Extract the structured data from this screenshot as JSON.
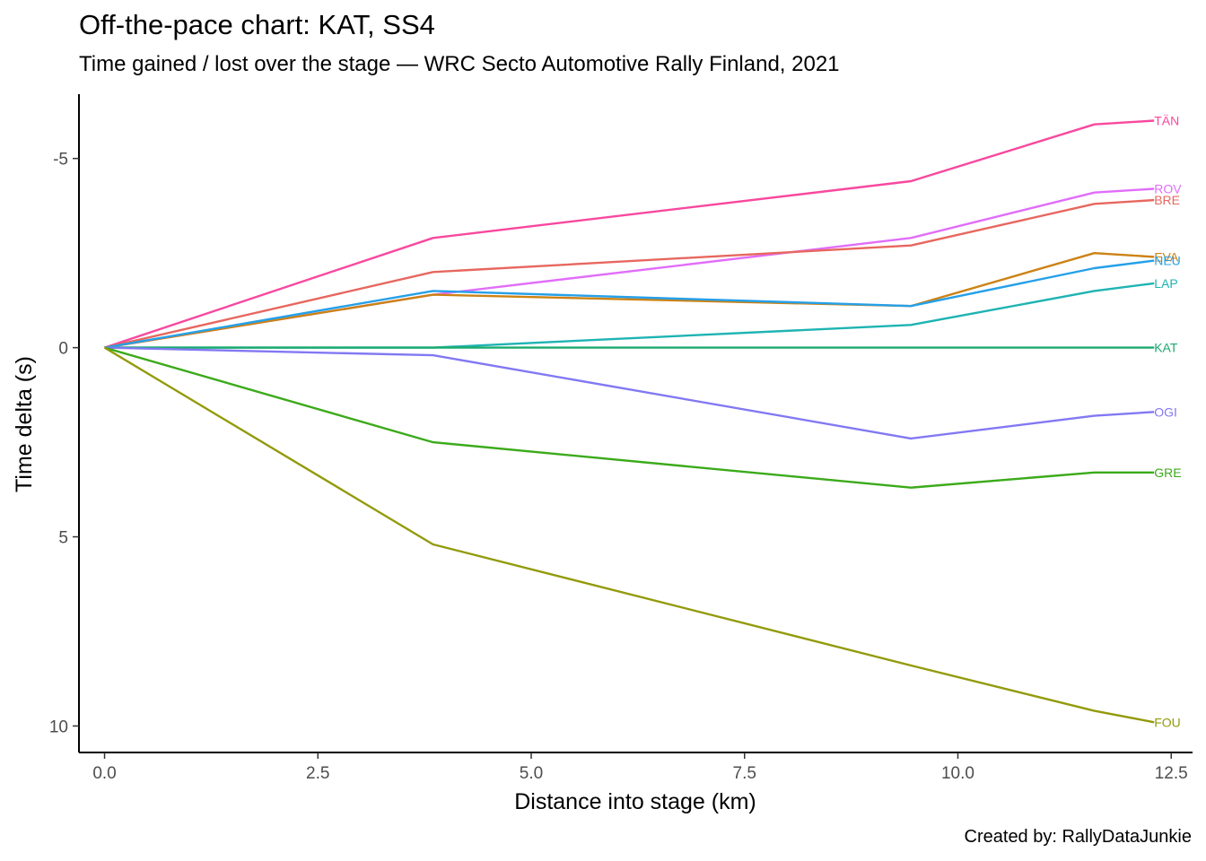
{
  "chart_data": {
    "type": "line",
    "title": "Off-the-pace chart: KAT, SS4",
    "subtitle": "Time gained / lost over the stage — WRC Secto Automotive Rally Finland, 2021",
    "caption": "Created by: RallyDataJunkie",
    "xlabel": "Distance into stage (km)",
    "ylabel": "Time delta (s)",
    "xlim": [
      -0.3,
      12.75
    ],
    "ylim": [
      -6.7,
      10.7
    ],
    "y_reversed": true,
    "grid": false,
    "legend": "none (direct line-end labels)",
    "x_ticks": [
      0,
      2.5,
      5,
      7.5,
      10,
      12.5
    ],
    "x_tick_labels": [
      "0.0",
      "2.5",
      "5.0",
      "7.5",
      "10.0",
      "12.5"
    ],
    "y_ticks": [
      -5,
      0,
      5,
      10
    ],
    "y_tick_labels": [
      "-5",
      "0",
      "5",
      "10"
    ],
    "x": [
      0,
      3.85,
      9.45,
      11.6,
      12.3
    ],
    "series": [
      {
        "name": "TÄN",
        "color": "#F8489E",
        "values": [
          0,
          -2.9,
          -4.4,
          -5.9,
          -6.0
        ]
      },
      {
        "name": "ROV",
        "color": "#E16DFA",
        "values": [
          0,
          -1.4,
          -2.9,
          -4.1,
          -4.2
        ]
      },
      {
        "name": "BRE",
        "color": "#E7675F",
        "values": [
          0,
          -2.0,
          -2.7,
          -3.8,
          -3.9
        ]
      },
      {
        "name": "EVA",
        "color": "#CC8214",
        "values": [
          0,
          -1.4,
          -1.1,
          -2.5,
          -2.4
        ]
      },
      {
        "name": "NEU",
        "color": "#25A0E8",
        "values": [
          0,
          -1.5,
          -1.1,
          -2.1,
          -2.3
        ]
      },
      {
        "name": "LAP",
        "color": "#1FB3B3",
        "values": [
          0,
          0,
          -0.6,
          -1.5,
          -1.7
        ]
      },
      {
        "name": "KAT",
        "color": "#1BAA6E",
        "values": [
          0,
          0,
          0,
          0,
          0
        ]
      },
      {
        "name": "OGI",
        "color": "#8278F3",
        "values": [
          0,
          0.2,
          2.4,
          1.8,
          1.7
        ]
      },
      {
        "name": "GRE",
        "color": "#3BAA1A",
        "values": [
          0,
          2.5,
          3.7,
          3.3,
          3.3
        ]
      },
      {
        "name": "FOU",
        "color": "#939A0A",
        "values": [
          0,
          5.2,
          8.4,
          9.6,
          9.9
        ]
      }
    ]
  }
}
